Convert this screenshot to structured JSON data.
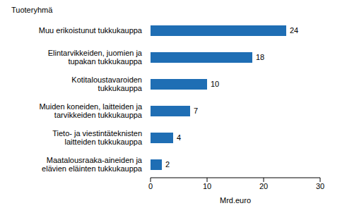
{
  "chart_data": {
    "type": "bar",
    "orientation": "horizontal",
    "y_label": "Tuoteryhmä",
    "x_label": "Mrd.euro",
    "categories": [
      "Muu erikoistunut tukkukauppa",
      "Elintarvikkeiden, juomien ja tupakan tukkukauppa",
      "Kotitaloustavaroiden tukkukauppa",
      "Muiden koneiden, laitteiden ja tarvikkeiden tukkukauppa",
      "Tieto- ja viestintäteknisten laitteiden tukkukauppa",
      "Maatalousraaka-aineiden ja elävien eläinten tukkukauppa"
    ],
    "values": [
      24,
      18,
      10,
      7,
      4,
      2
    ],
    "color": "#1f6eb4",
    "xlim": [
      0,
      30
    ],
    "xticks": [
      0,
      10,
      20,
      30
    ],
    "grid": false,
    "data_labels": true
  }
}
